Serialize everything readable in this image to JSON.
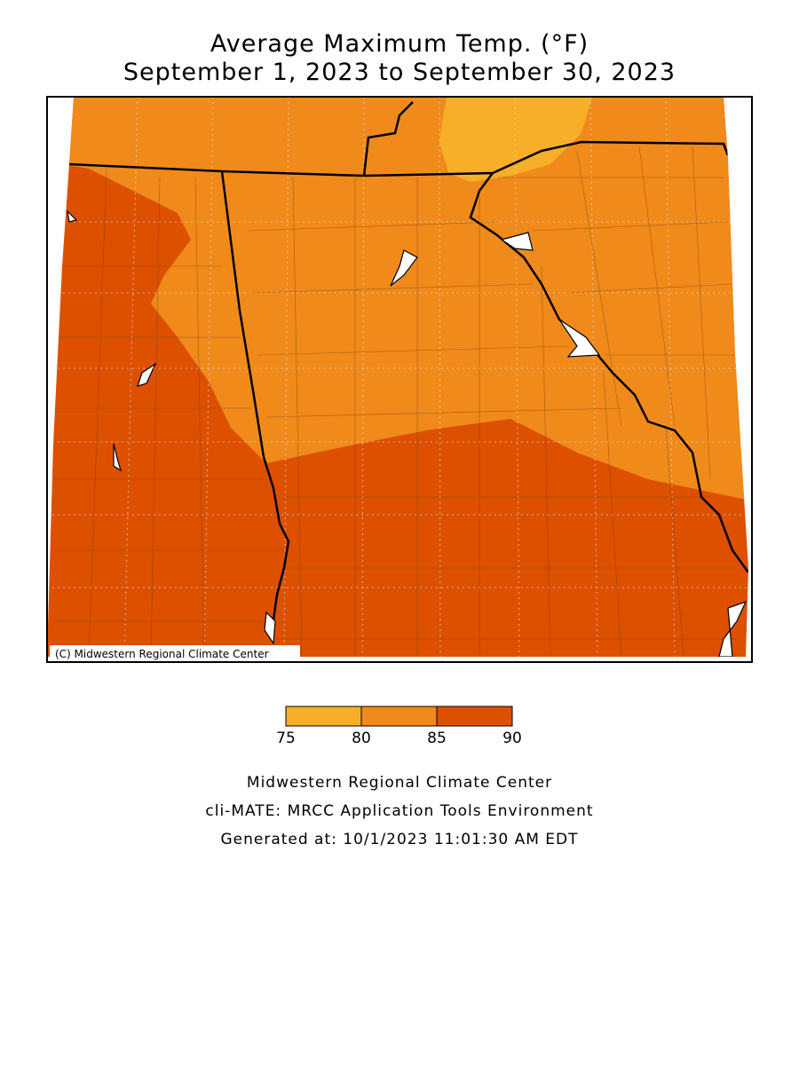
{
  "header": {
    "title_line1": "Average Maximum Temp. (°F)",
    "title_line2": "September 1, 2023 to September 30, 2023"
  },
  "map": {
    "credit": "(C) Midwestern Regional Climate Center"
  },
  "legend": {
    "bins": [
      75,
      80,
      85,
      90
    ],
    "colors": [
      "#f7ae29",
      "#ef8a1b",
      "#dc5000"
    ]
  },
  "footer": {
    "line1": "Midwestern Regional Climate Center",
    "line2": "cli-MATE: MRCC Application Tools Environment",
    "line3": "Generated at: 10/1/2023 11:01:30 AM EDT"
  }
}
